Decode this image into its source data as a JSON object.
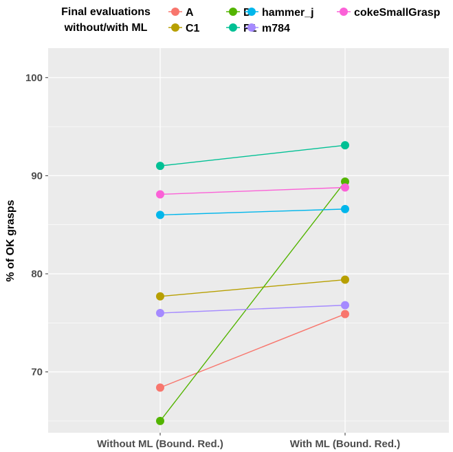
{
  "chart_data": {
    "type": "line",
    "categories": [
      "Without ML (Bound. Red.)",
      "With ML (Bound. Red.)"
    ],
    "series": [
      {
        "name": "A",
        "color": "#F8766D",
        "values": [
          68.4,
          75.9
        ]
      },
      {
        "name": "C1",
        "color": "#B79F00",
        "values": [
          77.7,
          79.4
        ]
      },
      {
        "name": "D",
        "color": "#53B400",
        "values": [
          65.0,
          89.4
        ]
      },
      {
        "name": "P1",
        "color": "#00C094",
        "values": [
          91.0,
          93.1
        ]
      },
      {
        "name": "hammer_j",
        "color": "#00B6EB",
        "values": [
          86.0,
          86.6
        ]
      },
      {
        "name": "m784",
        "color": "#A58AFF",
        "values": [
          76.0,
          76.8
        ]
      },
      {
        "name": "cokeSmallGrasp",
        "color": "#FB61D7",
        "values": [
          88.1,
          88.8
        ]
      }
    ],
    "ylabel": "% of OK grasps",
    "xlabel": "",
    "ylim": [
      63.8,
      103.0
    ],
    "yticks": [
      "70",
      "80",
      "90",
      "100"
    ],
    "ytick_values": [
      70,
      80,
      90,
      100
    ],
    "legend": {
      "title_line1": "Final evaluations",
      "title_line2": "without/with ML",
      "position": "top"
    },
    "grid": true
  }
}
